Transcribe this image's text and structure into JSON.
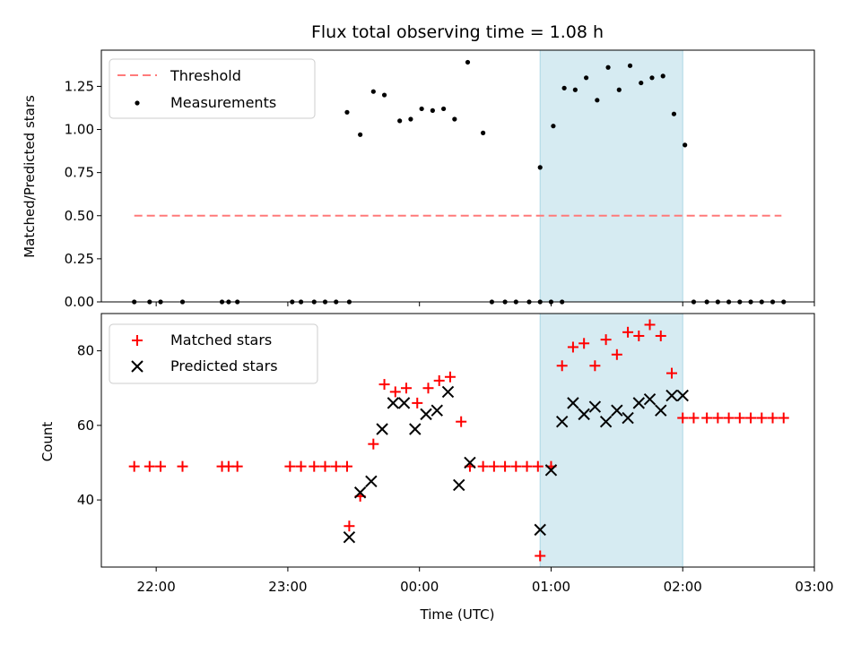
{
  "chart_data": [
    {
      "type": "scatter",
      "title": "Flux total observing time = 1.08 h",
      "xlabel": "",
      "ylabel": "Matched/Predicted stars",
      "xlim": [
        "21:35",
        "03:00"
      ],
      "ylim": [
        0,
        1.46
      ],
      "yticks": [
        0.0,
        0.25,
        0.5,
        0.75,
        1.0,
        1.25
      ],
      "ytick_labels": [
        "0.00",
        "0.25",
        "0.50",
        "0.75",
        "1.00",
        "1.25"
      ],
      "grid": false,
      "legend_position": "top-left",
      "highlight_span": [
        "00:55",
        "02:00"
      ],
      "threshold": {
        "name": "Threshold",
        "value": 0.5,
        "x_range": [
          "21:50",
          "02:45"
        ],
        "color": "#ff7a7a"
      },
      "series": [
        {
          "name": "Measurements",
          "color": "#000000",
          "marker": "dot",
          "x": [
            "21:50",
            "21:57",
            "22:02",
            "22:12",
            "22:30",
            "22:33",
            "22:37",
            "23:02",
            "23:06",
            "23:12",
            "23:17",
            "23:22",
            "23:27",
            "23:28",
            "23:33",
            "23:39",
            "23:44",
            "23:51",
            "23:56",
            "00:01",
            "00:06",
            "00:11",
            "00:16",
            "00:22",
            "00:29",
            "00:33",
            "00:39",
            "00:44",
            "00:50",
            "00:55",
            "01:00",
            "01:05",
            "00:55",
            "01:01",
            "01:06",
            "01:11",
            "01:16",
            "01:21",
            "01:26",
            "01:31",
            "01:36",
            "01:41",
            "01:46",
            "01:51",
            "01:56",
            "02:01",
            "02:05",
            "02:11",
            "02:16",
            "02:21",
            "02:26",
            "02:31",
            "02:36",
            "02:41",
            "02:46"
          ],
          "y": [
            0,
            0,
            0,
            0,
            0,
            0,
            0,
            0,
            0,
            0,
            0,
            0,
            1.1,
            0,
            0.97,
            1.22,
            1.2,
            1.05,
            1.06,
            1.12,
            1.11,
            1.12,
            1.06,
            1.39,
            0.98,
            0,
            0,
            0,
            0,
            0,
            0,
            0,
            0.78,
            1.02,
            1.24,
            1.23,
            1.3,
            1.17,
            1.36,
            1.23,
            1.37,
            1.27,
            1.3,
            1.31,
            1.09,
            0.91,
            0,
            0,
            0,
            0,
            0,
            0,
            0,
            0,
            0
          ]
        }
      ]
    },
    {
      "type": "scatter",
      "title": "",
      "xlabel": "Time (UTC)",
      "ylabel": "Count",
      "xlim": [
        "21:35",
        "03:00"
      ],
      "ylim": [
        22,
        90
      ],
      "yticks": [
        40,
        60,
        80
      ],
      "xtick_labels": [
        "22:00",
        "23:00",
        "00:00",
        "01:00",
        "02:00",
        "03:00"
      ],
      "grid": false,
      "legend_position": "top-left",
      "highlight_span": [
        "00:55",
        "02:00"
      ],
      "series": [
        {
          "name": "Matched stars",
          "color": "#ff0000",
          "marker": "plus",
          "x": [
            "21:50",
            "21:57",
            "22:02",
            "22:12",
            "22:30",
            "22:33",
            "22:37",
            "23:01",
            "23:06",
            "23:12",
            "23:17",
            "23:22",
            "23:27",
            "23:28",
            "23:33",
            "23:39",
            "23:44",
            "23:49",
            "23:54",
            "23:59",
            "00:04",
            "00:09",
            "00:14",
            "00:19",
            "00:23",
            "00:29",
            "00:34",
            "00:39",
            "00:44",
            "00:49",
            "00:54",
            "00:55",
            "01:00",
            "01:05",
            "01:10",
            "01:15",
            "01:20",
            "01:25",
            "01:30",
            "01:35",
            "01:40",
            "01:45",
            "01:50",
            "01:55",
            "02:00",
            "02:05",
            "02:11",
            "02:16",
            "02:21",
            "02:26",
            "02:31",
            "02:36",
            "02:41",
            "02:46"
          ],
          "y": [
            49,
            49,
            49,
            49,
            49,
            49,
            49,
            49,
            49,
            49,
            49,
            49,
            49,
            33,
            41,
            55,
            71,
            69,
            70,
            66,
            70,
            72,
            73,
            61,
            49,
            49,
            49,
            49,
            49,
            49,
            49,
            25,
            49,
            76,
            81,
            82,
            76,
            83,
            79,
            85,
            84,
            87,
            84,
            74,
            62,
            62,
            62,
            62,
            62,
            62,
            62,
            62,
            62,
            62
          ]
        },
        {
          "name": "Predicted stars",
          "color": "#000000",
          "marker": "x",
          "x": [
            "23:28",
            "23:33",
            "23:38",
            "23:43",
            "23:48",
            "23:53",
            "23:58",
            "00:03",
            "00:08",
            "00:13",
            "00:18",
            "00:23",
            "00:55",
            "01:00",
            "01:05",
            "01:10",
            "01:15",
            "01:20",
            "01:25",
            "01:30",
            "01:35",
            "01:40",
            "01:45",
            "01:50",
            "01:55",
            "02:00"
          ],
          "y": [
            30,
            42,
            45,
            59,
            66,
            66,
            59,
            63,
            64,
            69,
            44,
            50,
            32,
            48,
            61,
            66,
            63,
            65,
            61,
            64,
            62,
            66,
            67,
            64,
            68,
            68
          ]
        }
      ]
    }
  ]
}
